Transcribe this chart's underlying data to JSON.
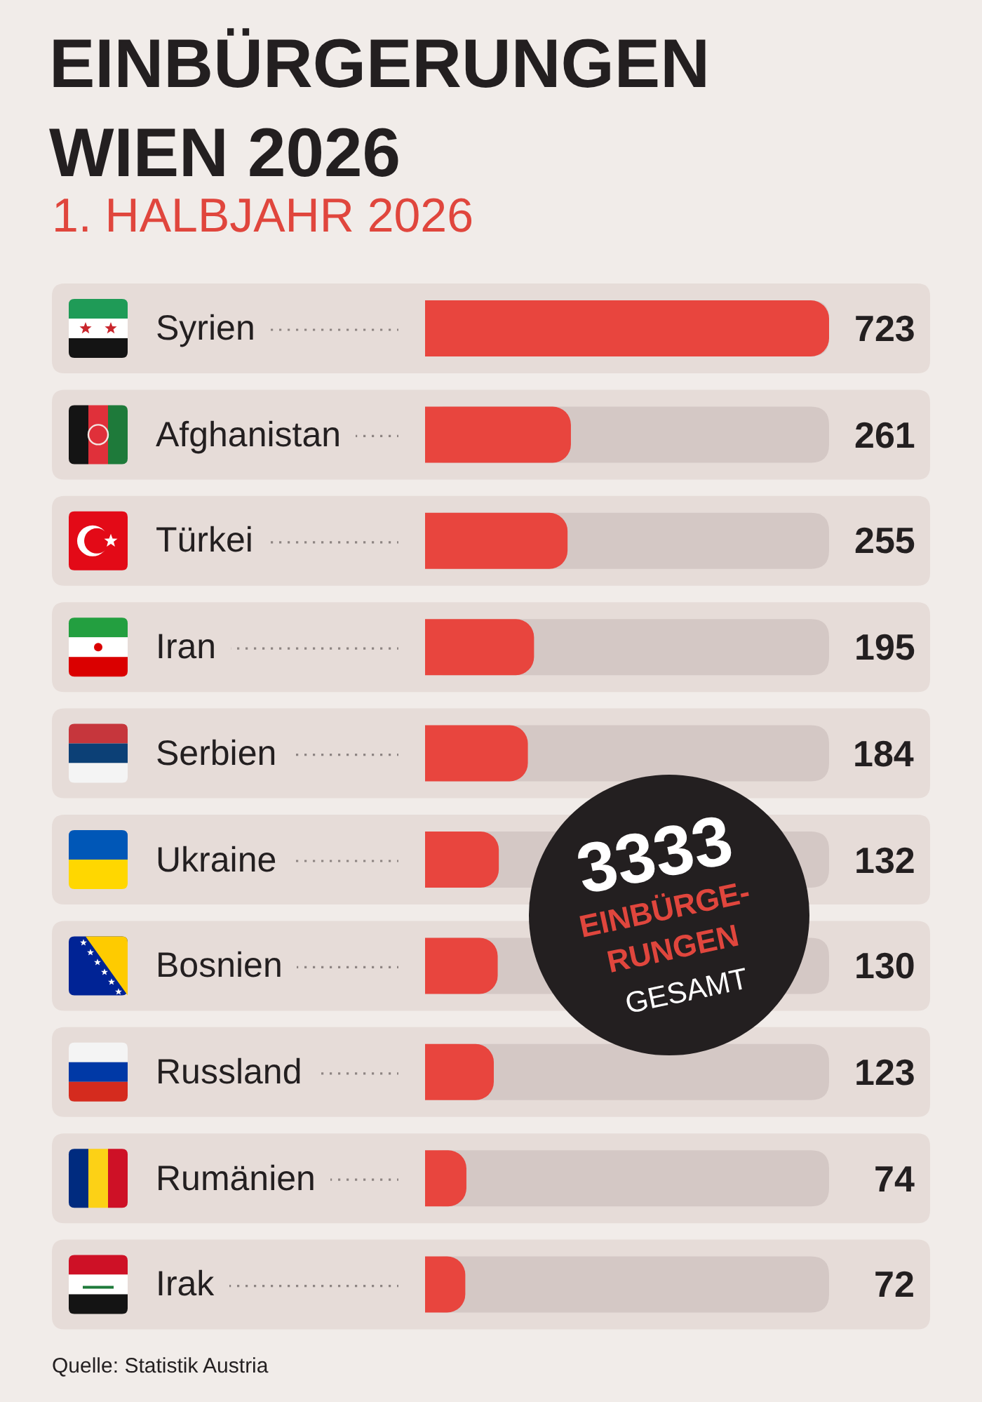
{
  "chart_data": {
    "type": "bar",
    "orientation": "horizontal",
    "title": "EINBÜRGERUNGEN\nWIEN 2026",
    "subtitle": "1. HALBJAHR 2026",
    "categories": [
      "Syrien",
      "Afghanistan",
      "Türkei",
      "Iran",
      "Serbien",
      "Ukraine",
      "Bosnien",
      "Russland",
      "Rumänien",
      "Irak"
    ],
    "values": [
      723,
      261,
      255,
      195,
      184,
      132,
      130,
      123,
      74,
      72
    ],
    "color": "#e8453e",
    "data_labels": true,
    "annotations": [
      "3333",
      "EINBÜRGE-\nRUNGEN",
      "GESAMT",
      "Quelle: Statistik Austria"
    ]
  }
}
